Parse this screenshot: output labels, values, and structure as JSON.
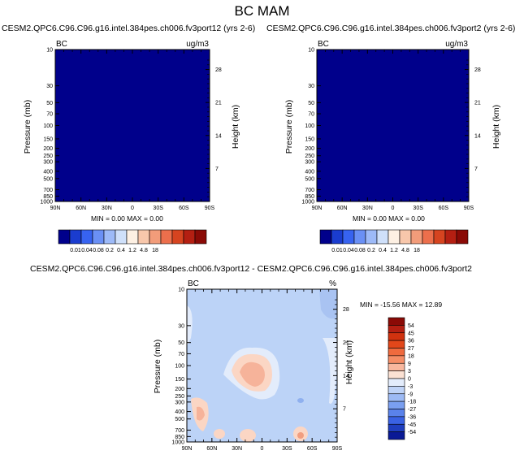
{
  "figure": {
    "title": "BC MAM"
  },
  "colors": {
    "fill_dark_blue": "#00008b",
    "frame": "#000000"
  },
  "chart_data": [
    {
      "type": "heatmap",
      "title": "CESM2.QPC6.C96.C96.g16.intel.384pes.ch006.fv3port12 (yrs 2-6)",
      "corner_left": "BC",
      "corner_right": "ug/m3",
      "ylabel": "Pressure (mb)",
      "ylabel_right": "Height (km)",
      "x_ticks": [
        "90N",
        "60N",
        "30N",
        "0",
        "30S",
        "60S",
        "90S"
      ],
      "y_ticks": [
        "10",
        "30",
        "50",
        "70",
        "100",
        "150",
        "200",
        "250",
        "300",
        "400",
        "500",
        "700",
        "850",
        "1000"
      ],
      "height_ticks": [
        "28",
        "21",
        "14",
        "7"
      ],
      "ylim": [
        1000,
        10
      ],
      "stats": "MIN =  0.00  MAX =  0.00",
      "colorbar_labels": [
        "0.01",
        "0.04",
        "0.08",
        "0.2",
        "0.4",
        "1.2",
        "4.8",
        "18"
      ],
      "field_uniform_value": 0.0
    },
    {
      "type": "heatmap",
      "title": "CESM2.QPC6.C96.C96.g16.intel.384pes.ch006.fv3port2 (yrs 2-6)",
      "corner_left": "BC",
      "corner_right": "ug/m3",
      "ylabel": "Pressure (mb)",
      "ylabel_right": "Height (km)",
      "x_ticks": [
        "90N",
        "60N",
        "30N",
        "0",
        "30S",
        "60S",
        "90S"
      ],
      "y_ticks": [
        "10",
        "30",
        "50",
        "70",
        "100",
        "150",
        "200",
        "250",
        "300",
        "400",
        "500",
        "700",
        "850",
        "1000"
      ],
      "height_ticks": [
        "28",
        "21",
        "14",
        "7"
      ],
      "ylim": [
        1000,
        10
      ],
      "stats": "MIN =  0.00  MAX =  0.00",
      "colorbar_labels": [
        "0.01",
        "0.04",
        "0.08",
        "0.2",
        "0.4",
        "1.2",
        "4.8",
        "18"
      ],
      "field_uniform_value": 0.0
    },
    {
      "type": "heatmap",
      "title": "CESM2.QPC6.C96.C96.g16.intel.384pes.ch006.fv3port12 - CESM2.QPC6.C96.C96.g16.intel.384pes.ch006.fv3port2",
      "corner_left": "BC",
      "corner_right": "%",
      "ylabel": "Pressure (mb)",
      "ylabel_right": "Height (km)",
      "x_ticks": [
        "90N",
        "60N",
        "30N",
        "0",
        "30S",
        "60S",
        "90S"
      ],
      "y_ticks": [
        "10",
        "30",
        "50",
        "70",
        "100",
        "150",
        "200",
        "250",
        "300",
        "400",
        "500",
        "700",
        "850",
        "1000"
      ],
      "height_ticks": [
        "28",
        "21",
        "14",
        "7"
      ],
      "ylim": [
        1000,
        10
      ],
      "stats": "MIN = -15.56  MAX =  12.89",
      "min": -15.56,
      "max": 12.89,
      "colorbar_labels": [
        "54",
        "45",
        "36",
        "27",
        "18",
        "9",
        "3",
        "0",
        "-3",
        "-9",
        "-18",
        "-27",
        "-36",
        "-45",
        "-54"
      ]
    }
  ]
}
